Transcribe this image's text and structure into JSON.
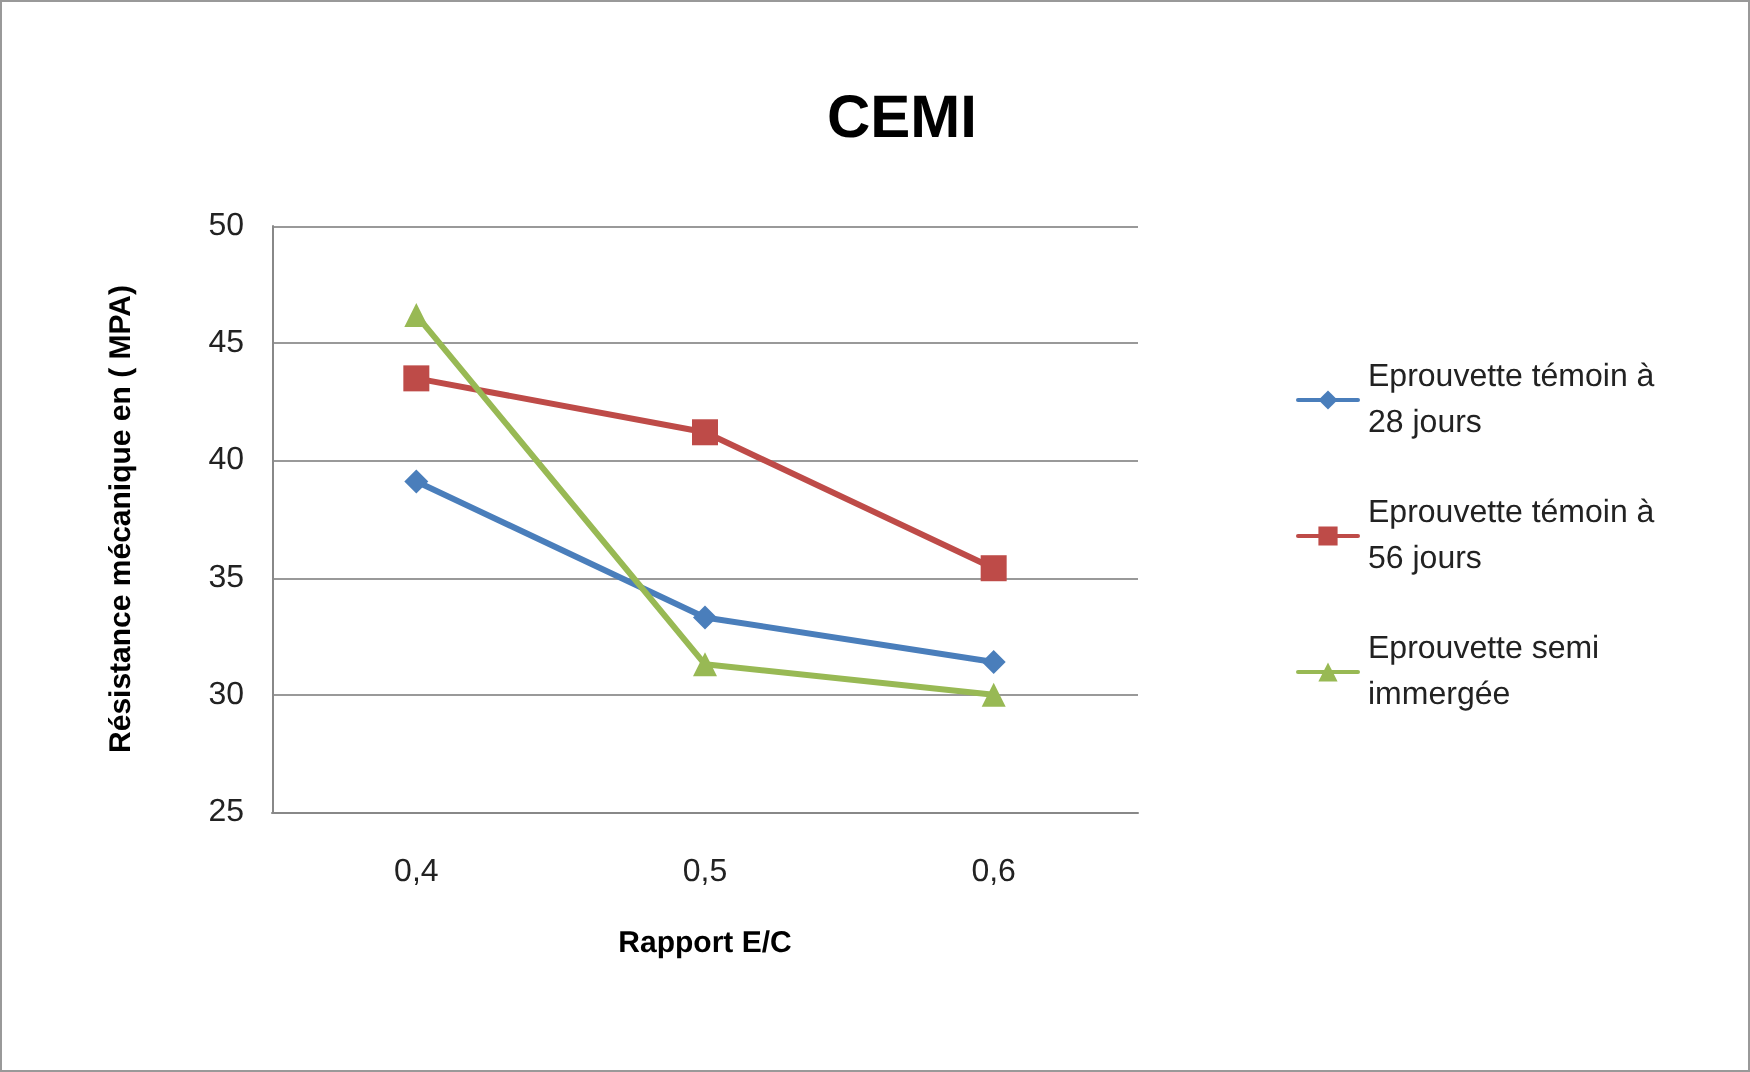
{
  "chart_data": {
    "type": "line",
    "title": "CEMI",
    "xlabel": "Rapport E/C",
    "ylabel": "Résistance mécanique en ( MPA)",
    "categories": [
      "0,4",
      "0,5",
      "0,6"
    ],
    "series": [
      {
        "name": "Eprouvette témoin à 28 jours",
        "color": "#4a7ebb",
        "marker": "diamond",
        "values": [
          39.1,
          33.3,
          31.4
        ]
      },
      {
        "name": "Eprouvette témoin à 56 jours",
        "color": "#be4b48",
        "marker": "square",
        "values": [
          43.5,
          41.2,
          35.4
        ]
      },
      {
        "name": "Eprouvette semi immergée",
        "color": "#98b954",
        "marker": "triangle",
        "values": [
          46.2,
          31.3,
          30.0
        ]
      }
    ],
    "ylim": [
      25,
      50
    ],
    "yticks": [
      25,
      30,
      35,
      40,
      45,
      50
    ],
    "grid": "y",
    "legend": "right",
    "line_style": "solid"
  }
}
